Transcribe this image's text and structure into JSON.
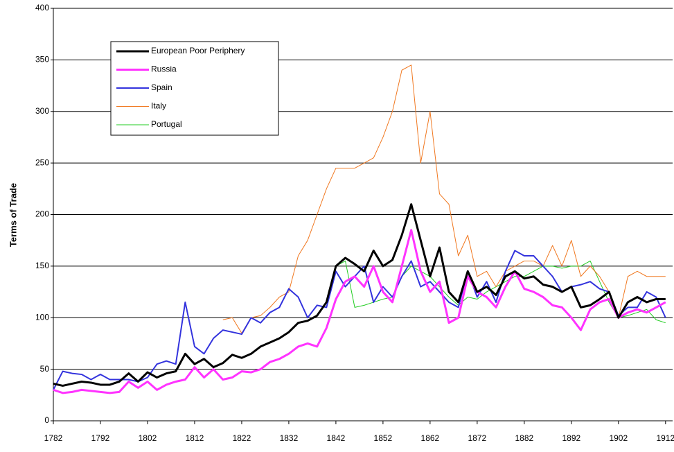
{
  "chart_data": {
    "type": "line",
    "y_label": "Terms of Trade",
    "x": [
      1782,
      1784,
      1786,
      1788,
      1790,
      1792,
      1794,
      1796,
      1798,
      1800,
      1802,
      1804,
      1806,
      1808,
      1810,
      1812,
      1814,
      1816,
      1818,
      1820,
      1822,
      1824,
      1826,
      1828,
      1830,
      1832,
      1834,
      1836,
      1838,
      1840,
      1842,
      1844,
      1846,
      1848,
      1850,
      1852,
      1854,
      1856,
      1858,
      1860,
      1862,
      1864,
      1866,
      1868,
      1870,
      1872,
      1874,
      1876,
      1878,
      1880,
      1882,
      1884,
      1886,
      1888,
      1890,
      1892,
      1894,
      1896,
      1898,
      1900,
      1902,
      1904,
      1906,
      1908,
      1910,
      1912
    ],
    "series": [
      {
        "name": "European Poor Periphery",
        "color": "#000000",
        "line_width": 3,
        "values": [
          36,
          34,
          36,
          38,
          37,
          35,
          35,
          38,
          46,
          38,
          47,
          42,
          46,
          48,
          65,
          55,
          60,
          52,
          56,
          64,
          61,
          65,
          72,
          76,
          80,
          86,
          95,
          97,
          102,
          115,
          150,
          158,
          152,
          145,
          165,
          150,
          156,
          180,
          210,
          175,
          140,
          168,
          125,
          115,
          145,
          125,
          130,
          122,
          140,
          145,
          138,
          140,
          132,
          130,
          125,
          130,
          110,
          112,
          118,
          125,
          100,
          115,
          120,
          115,
          118,
          118
        ]
      },
      {
        "name": "Russia",
        "color": "#ff33ff",
        "line_width": 3,
        "values": [
          30,
          27,
          28,
          30,
          29,
          28,
          27,
          28,
          38,
          32,
          38,
          30,
          35,
          38,
          40,
          52,
          42,
          50,
          40,
          42,
          48,
          47,
          50,
          57,
          60,
          65,
          72,
          75,
          72,
          90,
          118,
          135,
          140,
          130,
          150,
          125,
          115,
          150,
          185,
          145,
          125,
          135,
          95,
          100,
          140,
          125,
          120,
          110,
          130,
          145,
          128,
          125,
          120,
          112,
          110,
          100,
          88,
          108,
          115,
          118,
          100,
          105,
          108,
          105,
          110,
          115
        ]
      },
      {
        "name": "Spain",
        "color": "#3333dd",
        "line_width": 2,
        "values": [
          30,
          48,
          46,
          45,
          40,
          45,
          40,
          40,
          40,
          38,
          42,
          55,
          58,
          55,
          115,
          72,
          65,
          80,
          88,
          86,
          84,
          100,
          95,
          105,
          110,
          128,
          120,
          100,
          112,
          110,
          145,
          130,
          140,
          150,
          115,
          130,
          120,
          140,
          155,
          130,
          135,
          125,
          115,
          110,
          145,
          120,
          135,
          115,
          145,
          165,
          160,
          160,
          150,
          140,
          125,
          130,
          132,
          135,
          128,
          125,
          102,
          110,
          110,
          125,
          120,
          100
        ]
      },
      {
        "name": "Italy",
        "color": "#f07820",
        "line_width": 1,
        "values": [
          null,
          null,
          null,
          null,
          null,
          null,
          null,
          null,
          null,
          null,
          null,
          null,
          null,
          null,
          null,
          null,
          null,
          null,
          98,
          100,
          85,
          100,
          102,
          110,
          120,
          125,
          160,
          175,
          200,
          225,
          245,
          245,
          245,
          250,
          255,
          275,
          300,
          340,
          345,
          250,
          300,
          220,
          210,
          160,
          180,
          140,
          145,
          130,
          145,
          150,
          155,
          155,
          150,
          170,
          150,
          175,
          140,
          150,
          140,
          125,
          100,
          140,
          145,
          140,
          140,
          140
        ]
      },
      {
        "name": "Portugal",
        "color": "#22cc22",
        "line_width": 1,
        "values": [
          null,
          null,
          null,
          null,
          null,
          null,
          null,
          null,
          null,
          null,
          null,
          null,
          null,
          null,
          null,
          null,
          null,
          null,
          null,
          null,
          null,
          null,
          null,
          null,
          null,
          null,
          null,
          null,
          null,
          null,
          150,
          155,
          110,
          112,
          115,
          118,
          120,
          140,
          150,
          145,
          140,
          130,
          120,
          112,
          120,
          118,
          125,
          130,
          135,
          140,
          140,
          145,
          150,
          150,
          148,
          150,
          150,
          155,
          135,
          115,
          100,
          102,
          105,
          108,
          98,
          95
        ]
      }
    ],
    "xlim": [
      1782,
      1913.5
    ],
    "xticks": [
      1782,
      1792,
      1802,
      1812,
      1822,
      1832,
      1842,
      1852,
      1862,
      1872,
      1882,
      1892,
      1902,
      1912
    ],
    "ylim": [
      0,
      400
    ],
    "yticks": [
      0,
      50,
      100,
      150,
      200,
      250,
      300,
      350,
      400
    ],
    "grid": true,
    "legend": "upper-left"
  }
}
